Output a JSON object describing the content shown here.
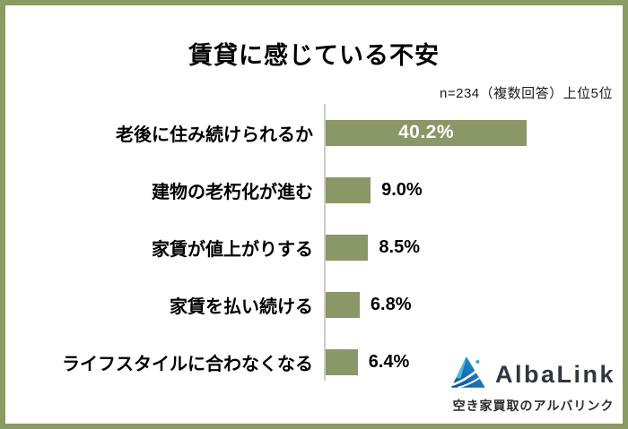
{
  "title": "賃貸に感じている不安",
  "subtitle": "n=234（複数回答）上位5位",
  "chart_data": {
    "type": "bar",
    "orientation": "horizontal",
    "title": "賃貸に感じている不安",
    "note": "n=234（複数回答）上位5位",
    "categories": [
      "老後に住み続けられるか",
      "建物の老朽化が進む",
      "家賃が値上がりする",
      "家賃を払い続ける",
      "ライフスタイルに合わなくなる"
    ],
    "values": [
      40.2,
      9.0,
      8.5,
      6.8,
      6.4
    ],
    "value_labels": [
      "40.2%",
      "9.0%",
      "8.5%",
      "6.8%",
      "6.4%"
    ],
    "xlim": [
      0,
      45
    ],
    "grid": false,
    "bar_color": "#8A9766",
    "axis_line_color": "#CBCBCB",
    "value_label_inside_threshold": 20
  },
  "frame": {
    "border_color": "#8C9A63"
  },
  "logo": {
    "brand": "AlbaLink",
    "tagline": "空き家買取のアルバリンク",
    "icon": "mountain-logo-icon",
    "colors": {
      "dark_blue": "#0F4C96",
      "mid_blue": "#2F9AD6",
      "light_blue": "#4DB6E8",
      "text": "#33353D"
    }
  }
}
